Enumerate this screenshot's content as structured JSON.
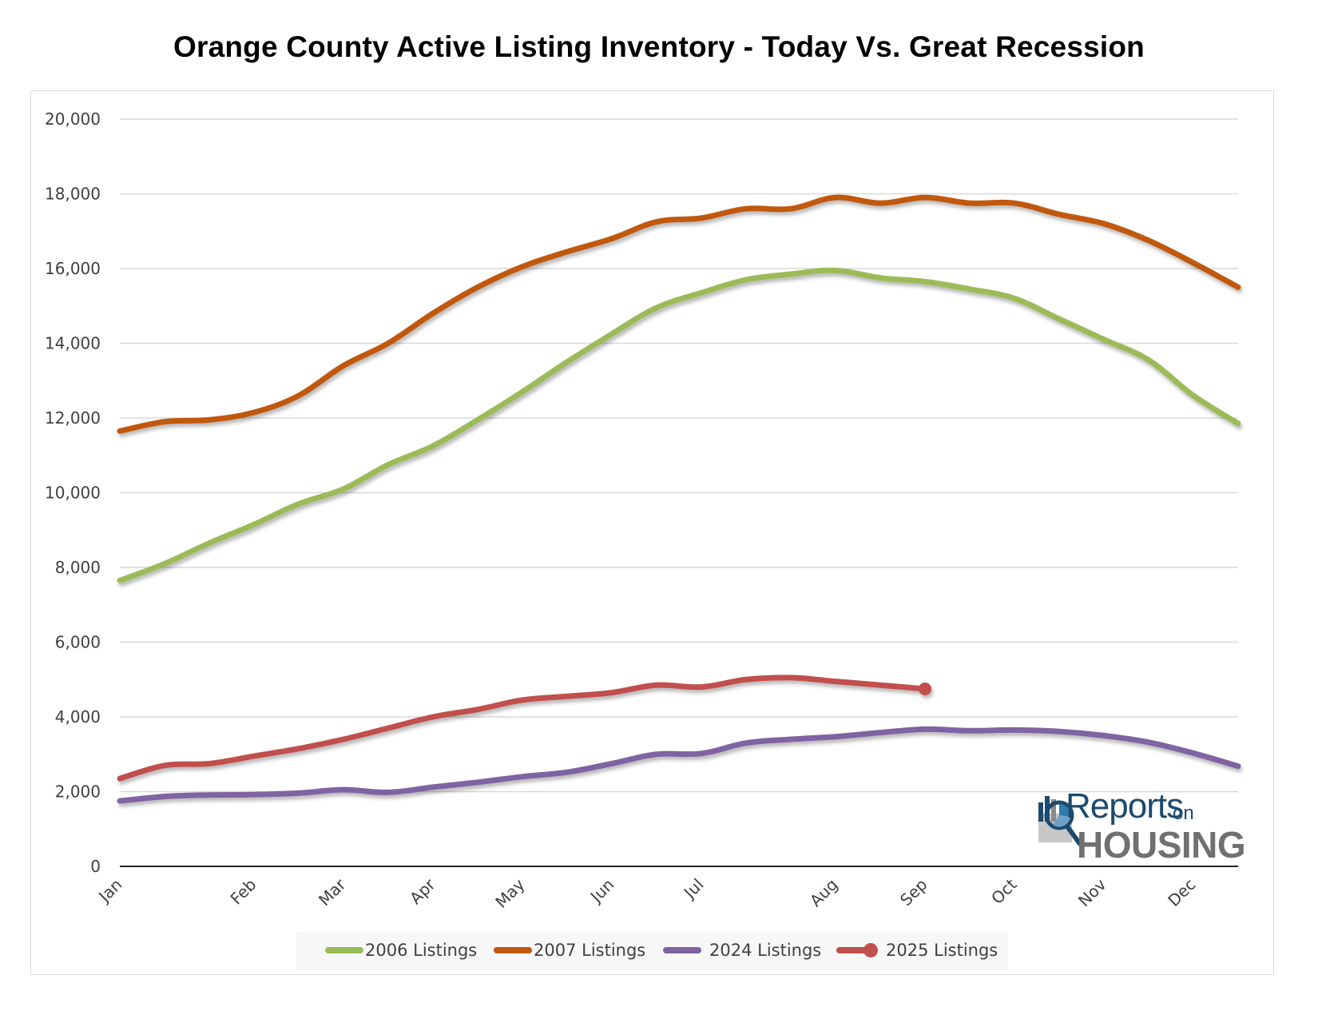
{
  "chart_data": {
    "type": "line",
    "title": "Orange County Active Listing Inventory - Today Vs. Great Recession",
    "xlabel": "",
    "ylabel": "",
    "ylim": [
      0,
      20000
    ],
    "yticks": [
      0,
      2000,
      4000,
      6000,
      8000,
      10000,
      12000,
      14000,
      16000,
      18000,
      20000
    ],
    "ytick_labels": [
      "0",
      "2,000",
      "4,000",
      "6,000",
      "8,000",
      "10,000",
      "12,000",
      "14,000",
      "16,000",
      "18,000",
      "20,000"
    ],
    "grid": true,
    "legend_position": "bottom",
    "num_points": 26,
    "x_month_labels": [
      {
        "label": "Jan",
        "index": 0
      },
      {
        "label": "Feb",
        "index": 3
      },
      {
        "label": "Mar",
        "index": 5
      },
      {
        "label": "Apr",
        "index": 7
      },
      {
        "label": "May",
        "index": 9
      },
      {
        "label": "Jun",
        "index": 11
      },
      {
        "label": "Jul",
        "index": 13
      },
      {
        "label": "Aug",
        "index": 16
      },
      {
        "label": "Sep",
        "index": 18
      },
      {
        "label": "Oct",
        "index": 20
      },
      {
        "label": "Nov",
        "index": 22
      },
      {
        "label": "Dec",
        "index": 24
      }
    ],
    "series": [
      {
        "name": "2006 Listings",
        "color": "#9bbb59",
        "end_marker": false,
        "values": [
          7650,
          8100,
          8650,
          9150,
          9700,
          10100,
          10750,
          11250,
          11950,
          12700,
          13500,
          14250,
          14950,
          15350,
          15700,
          15850,
          15950,
          15750,
          15650,
          15450,
          15200,
          14650,
          14100,
          13550,
          12600,
          11850
        ]
      },
      {
        "name": "2007 Listings",
        "color": "#c0590f",
        "end_marker": false,
        "values": [
          11650,
          11900,
          11950,
          12150,
          12600,
          13400,
          14000,
          14800,
          15500,
          16050,
          16450,
          16800,
          17250,
          17350,
          17600,
          17600,
          17900,
          17750,
          17900,
          17750,
          17750,
          17450,
          17200,
          16750,
          16150,
          15500
        ]
      },
      {
        "name": "2024 Listings",
        "color": "#8064a2",
        "end_marker": false,
        "values": [
          1750,
          1870,
          1910,
          1920,
          1960,
          2050,
          1980,
          2120,
          2250,
          2400,
          2520,
          2750,
          3000,
          3020,
          3300,
          3400,
          3470,
          3580,
          3670,
          3630,
          3650,
          3610,
          3500,
          3320,
          3030,
          2680
        ]
      },
      {
        "name": "2025 Listings",
        "color": "#c0504d",
        "end_marker": true,
        "values": [
          2350,
          2700,
          2750,
          2950,
          3150,
          3400,
          3700,
          4000,
          4200,
          4450,
          4550,
          4650,
          4850,
          4800,
          5000,
          5050,
          4950,
          4850,
          4750
        ]
      }
    ]
  },
  "logo": {
    "line1": "Reports",
    "line1_suffix": "on",
    "line2": "HOUSING",
    "icon": "magnifier-chart-icon"
  },
  "colors": {
    "gridline": "#d9d9d9",
    "axis": "#262626",
    "tick_text": "#404040",
    "legend_bg": "#f7f7f7"
  }
}
